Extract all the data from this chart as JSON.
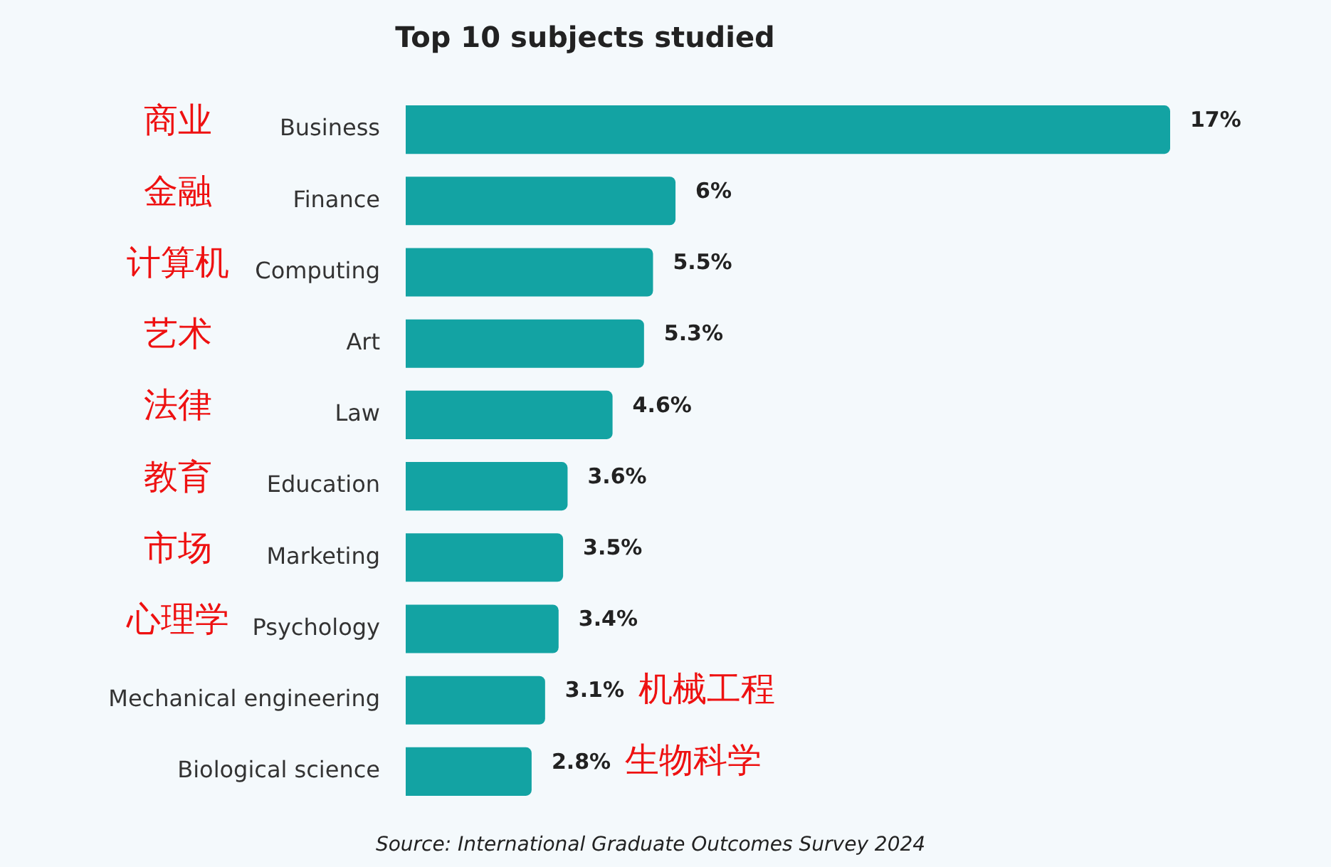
{
  "chart_data": {
    "type": "bar",
    "orientation": "horizontal",
    "title": "Top 10 subjects studied",
    "categories": [
      "Business",
      "Finance",
      "Computing",
      "Art",
      "Law",
      "Education",
      "Marketing",
      "Psychology",
      "Mechanical engineering",
      "Biological science"
    ],
    "values": [
      17,
      6,
      5.5,
      5.3,
      4.6,
      3.6,
      3.5,
      3.4,
      3.1,
      2.8
    ],
    "value_labels": [
      "17%",
      "6%",
      "5.5%",
      "5.3%",
      "4.6%",
      "3.6%",
      "3.5%",
      "3.4%",
      "3.1%",
      "2.8%"
    ],
    "color": "#13a3a3",
    "grid": false,
    "legend": false,
    "annotations": [
      "商业",
      "金融",
      "计算机",
      "艺术",
      "法律",
      "教育",
      "市场",
      "心理学",
      "机械工程",
      "生物科学",
      "Source: International Graduate Outcomes Survey 2024"
    ]
  }
}
